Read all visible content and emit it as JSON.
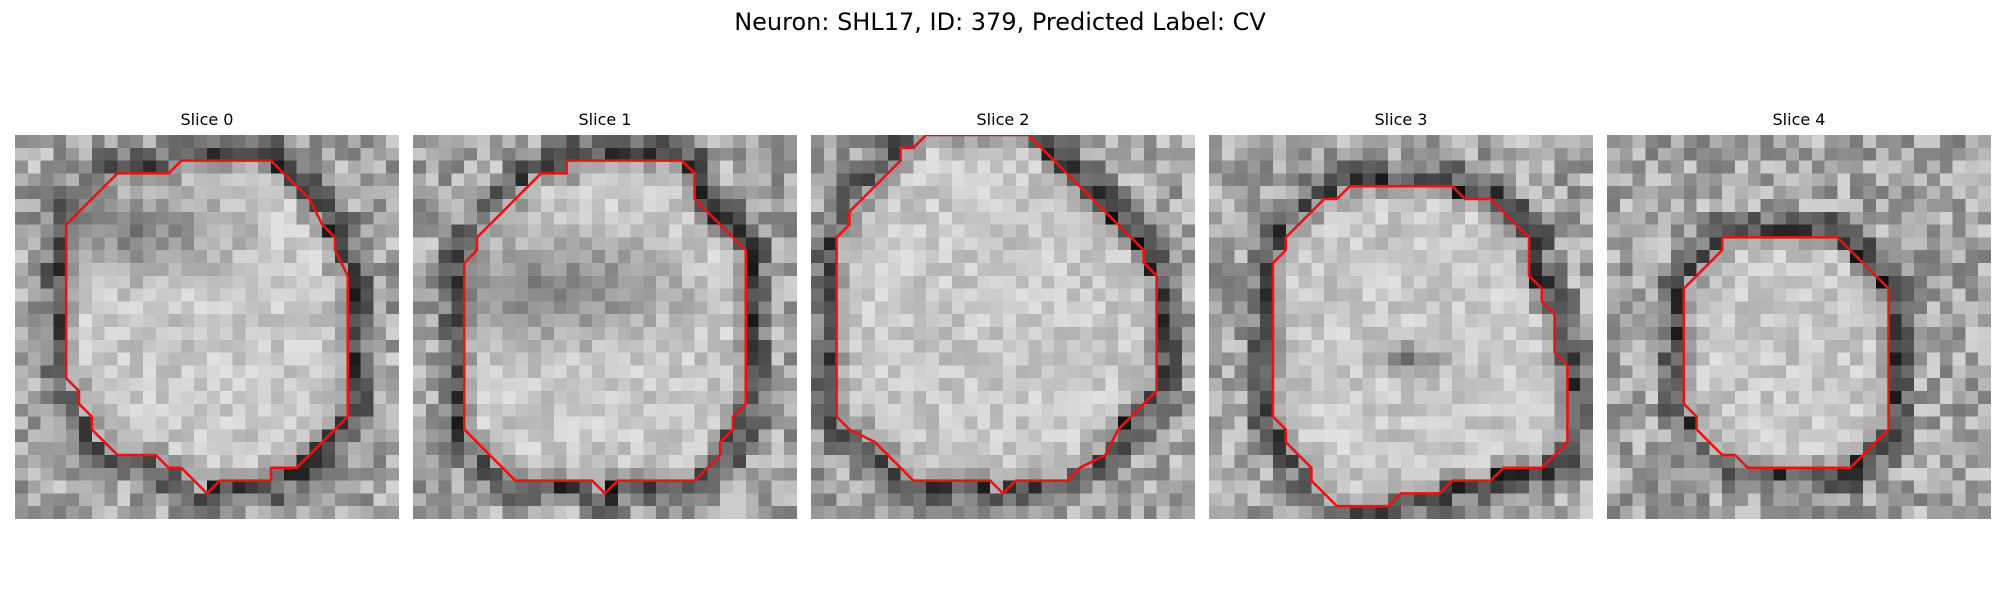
{
  "figure": {
    "title": "Neuron: SHL17, ID: 379, Predicted Label: CV"
  },
  "outline_color": "#ee1111",
  "panels": [
    {
      "title": "Slice 0",
      "outline": [
        [
          13,
          2
        ],
        [
          20,
          2
        ],
        [
          23,
          5
        ],
        [
          23,
          5
        ],
        [
          24,
          7
        ],
        [
          25,
          8
        ],
        [
          25,
          9
        ],
        [
          26,
          11
        ],
        [
          26,
          22
        ],
        [
          25,
          23
        ],
        [
          24,
          24
        ],
        [
          23,
          25
        ],
        [
          22,
          26
        ],
        [
          20,
          26
        ],
        [
          20,
          27
        ],
        [
          16,
          27
        ],
        [
          15,
          28
        ],
        [
          14,
          27
        ],
        [
          13,
          26
        ],
        [
          12,
          26
        ],
        [
          11,
          25
        ],
        [
          8,
          25
        ],
        [
          7,
          24
        ],
        [
          6,
          23
        ],
        [
          6,
          22
        ],
        [
          5,
          21
        ],
        [
          5,
          20
        ],
        [
          4,
          19
        ],
        [
          4,
          7
        ],
        [
          5,
          6
        ],
        [
          6,
          5
        ],
        [
          7,
          4
        ],
        [
          8,
          3
        ],
        [
          8,
          3
        ],
        [
          12,
          3
        ]
      ]
    },
    {
      "title": "Slice 1",
      "outline": [
        [
          12,
          2
        ],
        [
          21,
          2
        ],
        [
          22,
          3
        ],
        [
          22,
          5
        ],
        [
          23,
          6
        ],
        [
          24,
          7
        ],
        [
          25,
          8
        ],
        [
          26,
          9
        ],
        [
          26,
          21
        ],
        [
          25,
          22
        ],
        [
          25,
          23
        ],
        [
          24,
          24
        ],
        [
          24,
          25
        ],
        [
          23,
          26
        ],
        [
          22,
          27
        ],
        [
          16,
          27
        ],
        [
          15,
          28
        ],
        [
          14,
          27
        ],
        [
          8,
          27
        ],
        [
          7,
          26
        ],
        [
          6,
          25
        ],
        [
          5,
          24
        ],
        [
          4,
          23
        ],
        [
          4,
          10
        ],
        [
          5,
          9
        ],
        [
          5,
          8
        ],
        [
          6,
          7
        ],
        [
          7,
          6
        ],
        [
          8,
          5
        ],
        [
          9,
          4
        ],
        [
          10,
          3
        ],
        [
          12,
          3
        ]
      ]
    },
    {
      "title": "Slice 2",
      "outline": [
        [
          9,
          0
        ],
        [
          17,
          0
        ],
        [
          18,
          1
        ],
        [
          19,
          2
        ],
        [
          20,
          3
        ],
        [
          21,
          4
        ],
        [
          22,
          5
        ],
        [
          23,
          6
        ],
        [
          24,
          7
        ],
        [
          25,
          8
        ],
        [
          26,
          9
        ],
        [
          26,
          10
        ],
        [
          27,
          11
        ],
        [
          27,
          20
        ],
        [
          26,
          21
        ],
        [
          25,
          22
        ],
        [
          24,
          23
        ],
        [
          23,
          25
        ],
        [
          21,
          26
        ],
        [
          20,
          27
        ],
        [
          16,
          27
        ],
        [
          15,
          28
        ],
        [
          14,
          27
        ],
        [
          8,
          27
        ],
        [
          7,
          26
        ],
        [
          6,
          25
        ],
        [
          5,
          24
        ],
        [
          3,
          23
        ],
        [
          2,
          22
        ],
        [
          2,
          8
        ],
        [
          3,
          7
        ],
        [
          3,
          6
        ],
        [
          4,
          5
        ],
        [
          5,
          4
        ],
        [
          6,
          3
        ],
        [
          7,
          2
        ],
        [
          7,
          1
        ],
        [
          8,
          1
        ]
      ]
    },
    {
      "title": "Slice 3",
      "outline": [
        [
          11,
          4
        ],
        [
          19,
          4
        ],
        [
          20,
          5
        ],
        [
          22,
          5
        ],
        [
          23,
          6
        ],
        [
          24,
          7
        ],
        [
          25,
          8
        ],
        [
          25,
          11
        ],
        [
          26,
          12
        ],
        [
          26,
          13
        ],
        [
          27,
          14
        ],
        [
          27,
          17
        ],
        [
          28,
          18
        ],
        [
          28,
          24
        ],
        [
          27,
          25
        ],
        [
          26,
          26
        ],
        [
          25,
          26
        ],
        [
          24,
          26
        ],
        [
          23,
          26
        ],
        [
          22,
          27
        ],
        [
          19,
          27
        ],
        [
          18,
          28
        ],
        [
          15,
          28
        ],
        [
          14,
          29
        ],
        [
          10,
          29
        ],
        [
          9,
          28
        ],
        [
          8,
          27
        ],
        [
          8,
          26
        ],
        [
          7,
          25
        ],
        [
          6,
          24
        ],
        [
          6,
          23
        ],
        [
          5,
          22
        ],
        [
          5,
          21
        ],
        [
          5,
          20
        ],
        [
          5,
          10
        ],
        [
          6,
          9
        ],
        [
          6,
          8
        ],
        [
          7,
          7
        ],
        [
          8,
          6
        ],
        [
          9,
          5
        ],
        [
          10,
          5
        ]
      ]
    },
    {
      "title": "Slice 4",
      "outline": [
        [
          9,
          8
        ],
        [
          18,
          8
        ],
        [
          19,
          9
        ],
        [
          20,
          10
        ],
        [
          21,
          11
        ],
        [
          22,
          12
        ],
        [
          22,
          23
        ],
        [
          21,
          24
        ],
        [
          20,
          25
        ],
        [
          19,
          26
        ],
        [
          11,
          26
        ],
        [
          10,
          25
        ],
        [
          9,
          25
        ],
        [
          8,
          24
        ],
        [
          7,
          23
        ],
        [
          7,
          22
        ],
        [
          6,
          21
        ],
        [
          6,
          12
        ],
        [
          7,
          11
        ],
        [
          8,
          10
        ],
        [
          9,
          9
        ]
      ]
    }
  ]
}
